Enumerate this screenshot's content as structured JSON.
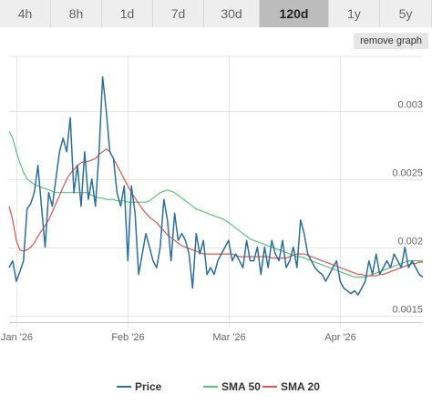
{
  "range_tabs": [
    {
      "label": "4h",
      "active": false
    },
    {
      "label": "8h",
      "active": false
    },
    {
      "label": "1d",
      "active": false
    },
    {
      "label": "7d",
      "active": false
    },
    {
      "label": "30d",
      "active": false
    },
    {
      "label": "120d",
      "active": true
    },
    {
      "label": "1y",
      "active": false
    },
    {
      "label": "5y",
      "active": false
    }
  ],
  "remove_graph_label": "remove graph",
  "chart_data": {
    "type": "line",
    "x_unit": "days since Jan 1 2026",
    "x_ticks": [
      {
        "x": 0,
        "label": "Jan '26"
      },
      {
        "x": 31,
        "label": "Feb '26"
      },
      {
        "x": 59,
        "label": "Mar '26"
      },
      {
        "x": 90,
        "label": "Apr '26"
      }
    ],
    "y_ticks": [
      {
        "y": 0.0015,
        "label": "0.0015"
      },
      {
        "y": 0.002,
        "label": "0.002"
      },
      {
        "y": 0.0025,
        "label": "0.0025"
      },
      {
        "y": 0.003,
        "label": "0.003"
      }
    ],
    "xlim": [
      -2,
      113
    ],
    "ylim": [
      0.00145,
      0.0034
    ],
    "grid": true,
    "legend_position": "bottom",
    "series": [
      {
        "name": "Price",
        "color": "#2b6f9e",
        "x": [
          -2,
          -1,
          0,
          1,
          2,
          3,
          4,
          5,
          6,
          7,
          8,
          9,
          10,
          11,
          12,
          13,
          14,
          15,
          16,
          17,
          18,
          19,
          20,
          21,
          22,
          23,
          24,
          25,
          26,
          27,
          28,
          29,
          30,
          31,
          32,
          33,
          34,
          35,
          36,
          37,
          38,
          39,
          40,
          41,
          42,
          43,
          44,
          45,
          46,
          47,
          48,
          49,
          50,
          51,
          52,
          53,
          54,
          55,
          56,
          57,
          58,
          59,
          60,
          61,
          62,
          63,
          64,
          65,
          66,
          67,
          68,
          69,
          70,
          71,
          72,
          73,
          74,
          75,
          76,
          77,
          78,
          79,
          80,
          81,
          82,
          83,
          84,
          85,
          86,
          87,
          88,
          89,
          90,
          91,
          92,
          93,
          94,
          95,
          96,
          97,
          98,
          99,
          100,
          101,
          102,
          103,
          104,
          105,
          106,
          107,
          108,
          109,
          110,
          111,
          112,
          113
        ],
        "y": [
          0.00185,
          0.0019,
          0.00175,
          0.00182,
          0.0019,
          0.00228,
          0.00232,
          0.0024,
          0.0026,
          0.0023,
          0.002,
          0.0024,
          0.0023,
          0.0025,
          0.0027,
          0.0028,
          0.0027,
          0.00295,
          0.0024,
          0.0026,
          0.0023,
          0.0027,
          0.00235,
          0.0025,
          0.0023,
          0.0027,
          0.00325,
          0.003,
          0.0027,
          0.00265,
          0.0024,
          0.0023,
          0.00245,
          0.0019,
          0.00245,
          0.00225,
          0.0018,
          0.00195,
          0.0021,
          0.002,
          0.0019,
          0.00185,
          0.002,
          0.00235,
          0.0022,
          0.0019,
          0.00225,
          0.00205,
          0.0021,
          0.00205,
          0.00195,
          0.0017,
          0.0021,
          0.00195,
          0.00205,
          0.0018,
          0.00185,
          0.0018,
          0.0019,
          0.00195,
          0.002,
          0.00205,
          0.0019,
          0.00195,
          0.0019,
          0.00185,
          0.00205,
          0.0019,
          0.0019,
          0.002,
          0.0018,
          0.002,
          0.00185,
          0.00205,
          0.00195,
          0.0019,
          0.00205,
          0.00185,
          0.0019,
          0.002,
          0.00185,
          0.0022,
          0.0021,
          0.00195,
          0.0019,
          0.00185,
          0.00182,
          0.0018,
          0.00175,
          0.0018,
          0.00185,
          0.0019,
          0.00175,
          0.0017,
          0.00168,
          0.00166,
          0.00168,
          0.00165,
          0.0017,
          0.00175,
          0.0019,
          0.0018,
          0.00195,
          0.0018,
          0.00185,
          0.0019,
          0.00185,
          0.00195,
          0.0019,
          0.00185,
          0.002,
          0.00185,
          0.0019,
          0.00185,
          0.0018,
          0.00178
        ]
      },
      {
        "name": "SMA 50",
        "color": "#55c47a",
        "x": [
          -2,
          -1,
          0,
          1,
          2,
          3,
          4,
          5,
          6,
          7,
          8,
          9,
          10,
          11,
          12,
          13,
          14,
          15,
          16,
          17,
          18,
          19,
          20,
          21,
          22,
          23,
          24,
          25,
          26,
          27,
          28,
          29,
          30,
          31,
          32,
          33,
          34,
          35,
          36,
          37,
          38,
          39,
          40,
          41,
          42,
          43,
          44,
          45,
          46,
          47,
          48,
          49,
          50,
          51,
          52,
          53,
          54,
          55,
          56,
          57,
          58,
          59,
          60,
          61,
          62,
          63,
          64,
          65,
          66,
          67,
          68,
          69,
          70,
          71,
          72,
          73,
          74,
          75,
          76,
          77,
          78,
          79,
          80,
          81,
          82,
          83,
          84,
          85,
          86,
          87,
          88,
          89,
          90,
          91,
          92,
          93,
          94,
          95,
          96,
          97,
          98,
          99,
          100,
          101,
          102,
          103,
          104,
          105,
          106,
          107,
          108,
          109,
          110,
          111,
          112,
          113
        ],
        "y": [
          0.00285,
          0.0028,
          0.0027,
          0.00262,
          0.00255,
          0.0025,
          0.00248,
          0.00246,
          0.00245,
          0.00244,
          0.00243,
          0.00242,
          0.00241,
          0.0024,
          0.0024,
          0.0024,
          0.0024,
          0.0024,
          0.0024,
          0.0024,
          0.0024,
          0.0024,
          0.0024,
          0.00238,
          0.00237,
          0.00236,
          0.00236,
          0.00235,
          0.00235,
          0.00235,
          0.00234,
          0.00234,
          0.00234,
          0.00233,
          0.00233,
          0.00233,
          0.00233,
          0.00233,
          0.00233,
          0.00234,
          0.00236,
          0.00238,
          0.0024,
          0.00241,
          0.00242,
          0.00241,
          0.0024,
          0.00238,
          0.00236,
          0.00234,
          0.00232,
          0.0023,
          0.00228,
          0.00227,
          0.00226,
          0.00225,
          0.00224,
          0.00223,
          0.00222,
          0.00221,
          0.0022,
          0.00218,
          0.00216,
          0.00214,
          0.00212,
          0.0021,
          0.00208,
          0.00206,
          0.00205,
          0.00204,
          0.00203,
          0.00202,
          0.00201,
          0.002,
          0.00199,
          0.00198,
          0.00197,
          0.00196,
          0.00195,
          0.00194,
          0.00193,
          0.00193,
          0.00192,
          0.00191,
          0.0019,
          0.00189,
          0.00188,
          0.00187,
          0.00186,
          0.00185,
          0.00184,
          0.00183,
          0.00182,
          0.00181,
          0.0018,
          0.00179,
          0.00178,
          0.00178,
          0.00178,
          0.00178,
          0.00179,
          0.0018,
          0.00181,
          0.00182,
          0.00183,
          0.00184,
          0.00185,
          0.00186,
          0.00187,
          0.00188,
          0.00189,
          0.0019,
          0.0019,
          0.0019,
          0.0019,
          0.0019
        ]
      },
      {
        "name": "SMA 20",
        "color": "#e0554f",
        "x": [
          -2,
          -1,
          0,
          1,
          2,
          3,
          4,
          5,
          6,
          7,
          8,
          9,
          10,
          11,
          12,
          13,
          14,
          15,
          16,
          17,
          18,
          19,
          20,
          21,
          22,
          23,
          24,
          25,
          26,
          27,
          28,
          29,
          30,
          31,
          32,
          33,
          34,
          35,
          36,
          37,
          38,
          39,
          40,
          41,
          42,
          43,
          44,
          45,
          46,
          47,
          48,
          49,
          50,
          51,
          52,
          53,
          54,
          55,
          56,
          57,
          58,
          59,
          60,
          61,
          62,
          63,
          64,
          65,
          66,
          67,
          68,
          69,
          70,
          71,
          72,
          73,
          74,
          75,
          76,
          77,
          78,
          79,
          80,
          81,
          82,
          83,
          84,
          85,
          86,
          87,
          88,
          89,
          90,
          91,
          92,
          93,
          94,
          95,
          96,
          97,
          98,
          99,
          100,
          101,
          102,
          103,
          104,
          105,
          106,
          107,
          108,
          109,
          110,
          111,
          112,
          113
        ],
        "y": [
          0.0023,
          0.0022,
          0.00205,
          0.00198,
          0.00197,
          0.00198,
          0.002,
          0.00203,
          0.00208,
          0.00212,
          0.00216,
          0.0022,
          0.00226,
          0.00232,
          0.00238,
          0.00244,
          0.0025,
          0.00254,
          0.00257,
          0.0026,
          0.00262,
          0.00263,
          0.00263,
          0.00264,
          0.00265,
          0.00268,
          0.0027,
          0.00272,
          0.0027,
          0.00265,
          0.0026,
          0.00255,
          0.0025,
          0.00245,
          0.0024,
          0.00236,
          0.00232,
          0.00228,
          0.00225,
          0.00222,
          0.0022,
          0.00218,
          0.00215,
          0.00212,
          0.00209,
          0.00207,
          0.00205,
          0.00203,
          0.00201,
          0.002,
          0.00199,
          0.00198,
          0.00197,
          0.00196,
          0.00195,
          0.00195,
          0.00195,
          0.00195,
          0.00195,
          0.00195,
          0.00195,
          0.00195,
          0.00195,
          0.00194,
          0.00193,
          0.00193,
          0.00193,
          0.00193,
          0.00193,
          0.00193,
          0.00193,
          0.00193,
          0.00193,
          0.00192,
          0.00192,
          0.00192,
          0.00192,
          0.00192,
          0.00193,
          0.00194,
          0.00195,
          0.00195,
          0.00195,
          0.00194,
          0.00193,
          0.00192,
          0.00191,
          0.0019,
          0.00189,
          0.00188,
          0.00187,
          0.00186,
          0.00185,
          0.00184,
          0.00183,
          0.00182,
          0.00181,
          0.0018,
          0.0018,
          0.00179,
          0.00179,
          0.00179,
          0.00179,
          0.0018,
          0.0018,
          0.00181,
          0.00182,
          0.00183,
          0.00184,
          0.00185,
          0.00186,
          0.00187,
          0.00188,
          0.00188,
          0.00189,
          0.00189
        ]
      }
    ]
  }
}
